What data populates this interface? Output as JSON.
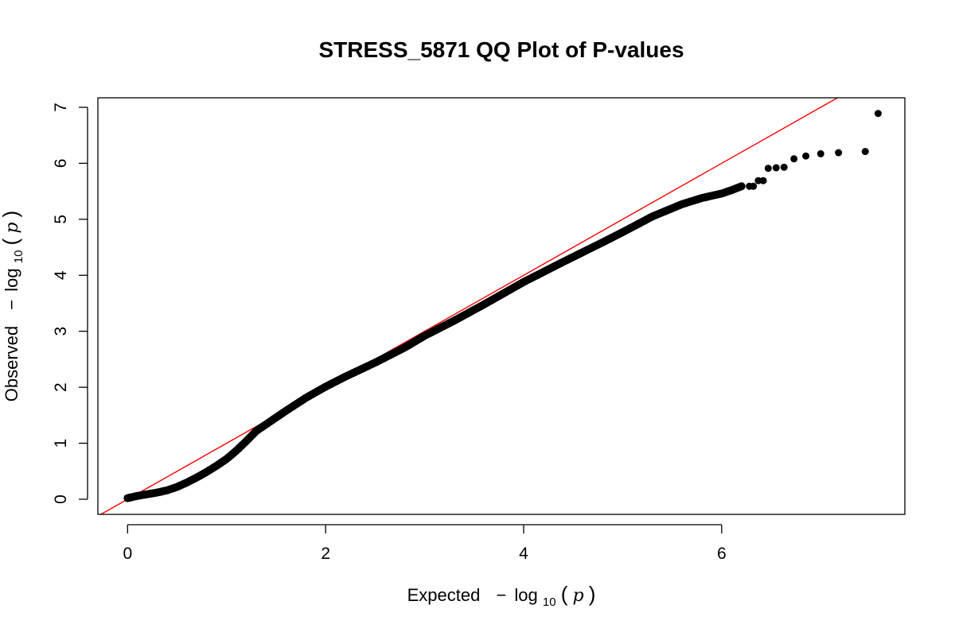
{
  "chart_data": {
    "type": "scatter",
    "title": "STRESS_5871 QQ Plot of P-values",
    "xlabel": {
      "prefix": "Expected",
      "minus": "−",
      "log": "log",
      "base": "10",
      "open": "(",
      "var": "p",
      "close": ")"
    },
    "ylabel": {
      "prefix": "Observed",
      "minus": "−",
      "log": "log",
      "base": "10",
      "open": "(",
      "var": "p",
      "close": ")"
    },
    "xlim": [
      -0.3,
      7.85
    ],
    "ylim": [
      -0.27,
      7.17
    ],
    "x_ticks": [
      "0",
      "2",
      "4",
      "6"
    ],
    "y_ticks": [
      "0",
      "1",
      "2",
      "3",
      "4",
      "5",
      "6",
      "7"
    ],
    "reference_line": {
      "slope": 1,
      "intercept": 0,
      "color": "#ff0000"
    },
    "point_color": "#000000",
    "grid": false,
    "curve": {
      "x": [
        0.0,
        0.1,
        0.2,
        0.3,
        0.4,
        0.5,
        0.6,
        0.7,
        0.8,
        0.9,
        1.0,
        1.1,
        1.2,
        1.3,
        1.4,
        1.5,
        1.6,
        1.8,
        2.0,
        2.2,
        2.5,
        2.8,
        3.0,
        3.3,
        3.6,
        4.0,
        4.4,
        4.8,
        5.0,
        5.3,
        5.6,
        5.8,
        6.0,
        6.1,
        6.2
      ],
      "y": [
        0.02,
        0.06,
        0.09,
        0.12,
        0.16,
        0.22,
        0.3,
        0.39,
        0.49,
        0.6,
        0.72,
        0.87,
        1.04,
        1.22,
        1.34,
        1.46,
        1.58,
        1.81,
        2.01,
        2.19,
        2.44,
        2.71,
        2.92,
        3.19,
        3.48,
        3.88,
        4.24,
        4.59,
        4.77,
        5.05,
        5.27,
        5.38,
        5.46,
        5.52,
        5.59
      ]
    },
    "outliers": [
      {
        "x": 6.28,
        "y": 5.59
      },
      {
        "x": 6.32,
        "y": 5.59
      },
      {
        "x": 6.37,
        "y": 5.69
      },
      {
        "x": 6.42,
        "y": 5.69
      },
      {
        "x": 6.47,
        "y": 5.91
      },
      {
        "x": 6.55,
        "y": 5.92
      },
      {
        "x": 6.63,
        "y": 5.93
      },
      {
        "x": 6.73,
        "y": 6.08
      },
      {
        "x": 6.85,
        "y": 6.13
      },
      {
        "x": 7.0,
        "y": 6.17
      },
      {
        "x": 7.18,
        "y": 6.19
      },
      {
        "x": 7.45,
        "y": 6.21
      },
      {
        "x": 7.58,
        "y": 6.89
      }
    ]
  }
}
